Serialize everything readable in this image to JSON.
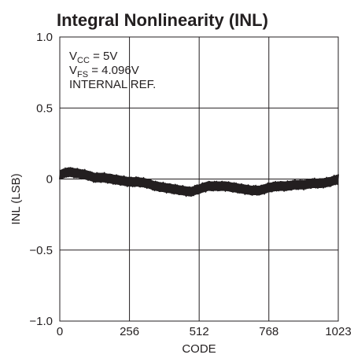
{
  "chart_data": {
    "type": "line",
    "title": "Integral Nonlinearity (INL)",
    "xlabel": "CODE",
    "ylabel": "INL (LSB)",
    "xlim": [
      0,
      1023
    ],
    "ylim": [
      -1.0,
      1.0
    ],
    "x_ticks": [
      {
        "value": 0,
        "label": "0"
      },
      {
        "value": 256,
        "label": "256"
      },
      {
        "value": 512,
        "label": "512"
      },
      {
        "value": 768,
        "label": "768"
      },
      {
        "value": 1023,
        "label": "1023"
      }
    ],
    "y_ticks": [
      {
        "value": 1.0,
        "label": "1.0"
      },
      {
        "value": 0.5,
        "label": "0.5"
      },
      {
        "value": 0,
        "label": "0"
      },
      {
        "value": -0.5,
        "label": "−0.5"
      },
      {
        "value": -1.0,
        "label": "−1.0"
      }
    ],
    "grid": true,
    "annotations": [
      {
        "main": "V",
        "sub": "CC",
        "rest": " = 5V"
      },
      {
        "main": "V",
        "sub": "FS",
        "rest": " = 4.096V"
      },
      {
        "main": "INTERNAL REF.",
        "sub": "",
        "rest": ""
      }
    ],
    "series": [
      {
        "x": [
          0,
          32,
          64,
          96,
          128,
          160,
          192,
          224,
          256,
          288,
          320,
          352,
          384,
          416,
          448,
          480,
          512,
          544,
          576,
          608,
          640,
          672,
          704,
          736,
          768,
          800,
          832,
          864,
          896,
          928,
          960,
          992,
          1023
        ],
        "y": [
          0.03,
          0.05,
          0.04,
          0.03,
          0.01,
          0.01,
          0.0,
          -0.01,
          -0.02,
          -0.02,
          -0.03,
          -0.05,
          -0.06,
          -0.07,
          -0.08,
          -0.09,
          -0.07,
          -0.05,
          -0.05,
          -0.05,
          -0.06,
          -0.07,
          -0.08,
          -0.08,
          -0.06,
          -0.05,
          -0.05,
          -0.04,
          -0.04,
          -0.03,
          -0.03,
          -0.02,
          0.0
        ],
        "band": 0.03,
        "color": "#231f20"
      }
    ]
  }
}
